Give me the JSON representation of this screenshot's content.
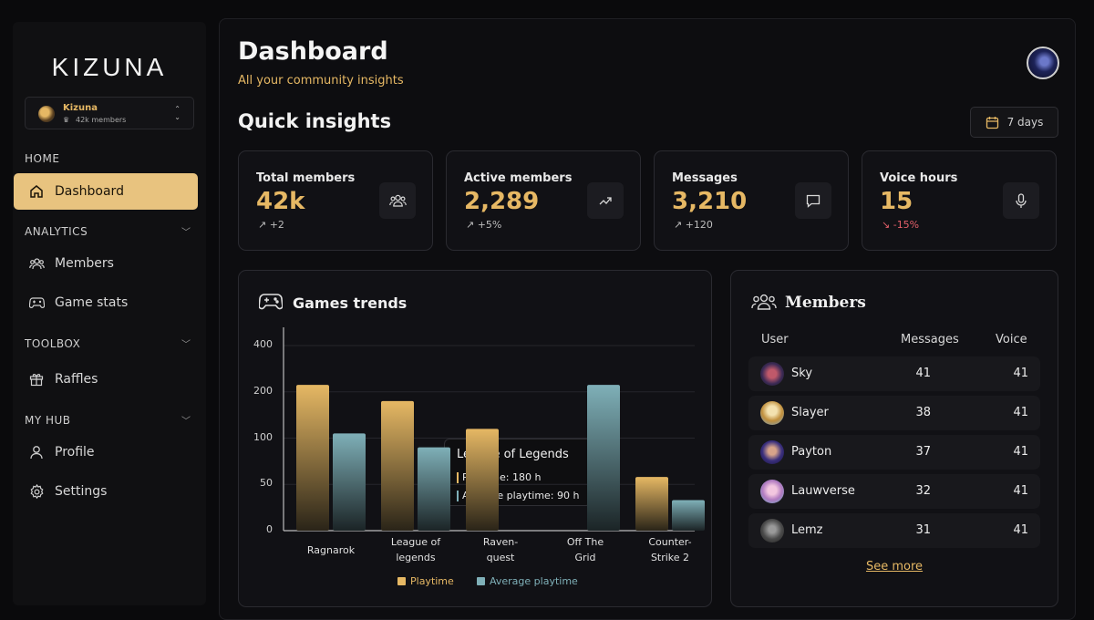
{
  "sidebar": {
    "logo": "KIZUNA",
    "server": {
      "name": "Kizuna",
      "members": "42k members"
    },
    "sections": {
      "home": "HOME",
      "analytics": "ANALYTICS",
      "toolbox": "TOOLBOX",
      "myhub": "MY HUB"
    },
    "items": {
      "dashboard": "Dashboard",
      "members": "Members",
      "game_stats": "Game stats",
      "raffles": "Raffles",
      "profile": "Profile",
      "settings": "Settings"
    }
  },
  "header": {
    "title": "Dashboard",
    "subtitle": "All your community insights"
  },
  "quick": {
    "title": "Quick insights",
    "range": "7 days"
  },
  "stats": [
    {
      "label": "Total members",
      "value": "42k",
      "change": "+2"
    },
    {
      "label": "Active members",
      "value": "2,289",
      "change": "+5%"
    },
    {
      "label": "Messages",
      "value": "3,210",
      "change": "+120"
    },
    {
      "label": "Voice hours",
      "value": "15",
      "change": "-15%"
    }
  ],
  "colors": {
    "accent": "#e6b864",
    "bar_primary": "#e6b864",
    "bar_secondary": "#7fb0b8",
    "negative": "#e5606a"
  },
  "games": {
    "title": "Games trends",
    "tooltip": {
      "title": "League of Legends",
      "line1": "Playtime: 180 h",
      "line2": "Average playtime: 90 h"
    }
  },
  "chart_data": {
    "type": "bar",
    "categories": [
      "Ragnarok",
      "League of legends",
      "Raven-quest",
      "Off The Grid",
      "Counter-Strike 2"
    ],
    "category_lines": [
      [
        "Ragnarok"
      ],
      [
        "League of",
        "legends"
      ],
      [
        "Raven-",
        "quest"
      ],
      [
        "Off The",
        "Grid"
      ],
      [
        "Counter-",
        "Strike 2"
      ]
    ],
    "y_ticks": [
      "0",
      "50",
      "100",
      "200",
      "400"
    ],
    "series": [
      {
        "name": "Playtime",
        "values": [
          230,
          180,
          120,
          0,
          58
        ]
      },
      {
        "name": "Average playtime",
        "values": [
          110,
          90,
          0,
          230,
          33
        ]
      }
    ],
    "legend": "bottom"
  },
  "members": {
    "title": "Members",
    "headers": {
      "user": "User",
      "messages": "Messages",
      "voice": "Voice"
    },
    "rows": [
      {
        "name": "Sky",
        "messages": "41",
        "voice": "41"
      },
      {
        "name": "Slayer",
        "messages": "38",
        "voice": "41"
      },
      {
        "name": "Payton",
        "messages": "37",
        "voice": "41"
      },
      {
        "name": "Lauwverse",
        "messages": "32",
        "voice": "41"
      },
      {
        "name": "Lemz",
        "messages": "31",
        "voice": "41"
      }
    ],
    "see_more": "See more"
  }
}
